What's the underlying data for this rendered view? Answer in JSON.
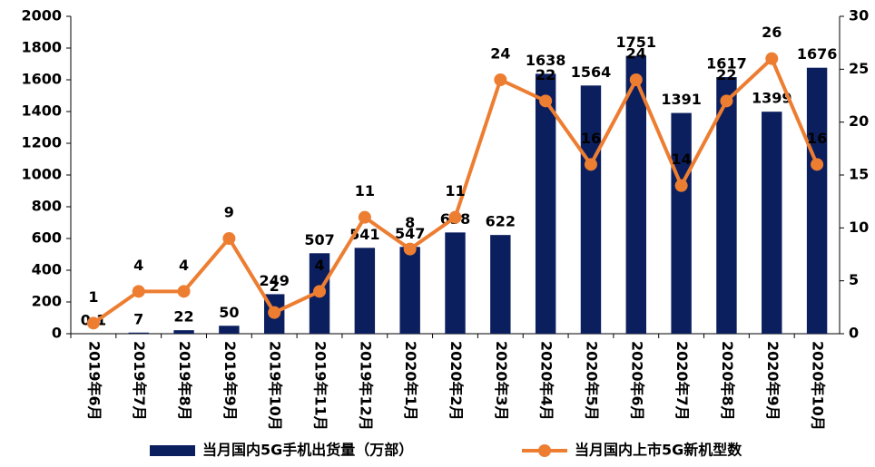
{
  "chart_data": {
    "type": "bar",
    "categories": [
      "2019年6月",
      "2019年7月",
      "2019年8月",
      "2019年9月",
      "2019年10月",
      "2019年11月",
      "2019年12月",
      "2020年1月",
      "2020年2月",
      "2020年3月",
      "2020年4月",
      "2020年5月",
      "2020年6月",
      "2020年7月",
      "2020年8月",
      "2020年9月",
      "2020年10月"
    ],
    "series": [
      {
        "name": "当月国内5G手机出货量（万部）",
        "type": "bar",
        "color": "#0b1f5e",
        "values": [
          0.1,
          7,
          22,
          50,
          249,
          507,
          541,
          547,
          638,
          622,
          1638,
          1564,
          1751,
          1391,
          1617,
          1399,
          1676
        ]
      },
      {
        "name": "当月国内上市5G新机型数",
        "type": "line",
        "axis": "y2",
        "color": "#ed7d31",
        "values": [
          1,
          4,
          4,
          9,
          2,
          4,
          11,
          8,
          11,
          24,
          22,
          16,
          24,
          14,
          22,
          26,
          16
        ]
      }
    ],
    "ylim": [
      0,
      2000
    ],
    "yticks": [
      0,
      200,
      400,
      600,
      800,
      1000,
      1200,
      1400,
      1600,
      1800,
      2000
    ],
    "y2lim": [
      0,
      30
    ],
    "y2ticks": [
      0,
      5,
      10,
      15,
      20,
      25,
      30
    ],
    "legend": "bottom"
  }
}
